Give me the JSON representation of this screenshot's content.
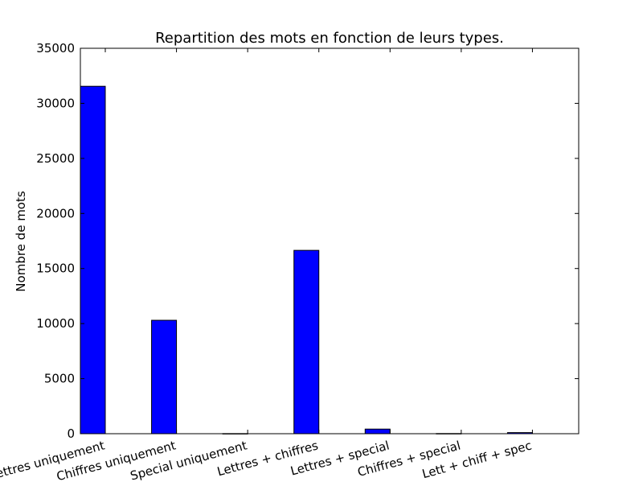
{
  "chart_data": {
    "type": "bar",
    "title": "Repartition des mots en fonction de leurs types.",
    "xlabel": "",
    "ylabel": "Nombre de mots",
    "categories": [
      "Lettres uniquement",
      "Chiffres uniquement",
      "Special uniquement",
      "Lettres + chiffres",
      "Lettres + special",
      "Chiffres + special",
      "Lett + chiff + spec"
    ],
    "values": [
      31550,
      10300,
      10,
      16650,
      420,
      15,
      100
    ],
    "ylim": [
      0,
      35000
    ],
    "yticks": [
      "0",
      "5000",
      "10000",
      "15000",
      "20000",
      "25000",
      "30000",
      "35000"
    ],
    "grid": false,
    "bar_color": "#0000ff",
    "edge_color": "#000000"
  }
}
